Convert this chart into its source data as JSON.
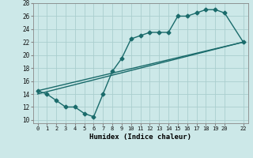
{
  "xlabel": "Humidex (Indice chaleur)",
  "bg_color": "#cce8e8",
  "grid_color": "#aacece",
  "line_color": "#1a6b6b",
  "xlim": [
    -0.5,
    22.5
  ],
  "ylim": [
    9.5,
    28
  ],
  "xticks": [
    0,
    1,
    2,
    3,
    4,
    5,
    6,
    7,
    8,
    9,
    10,
    11,
    12,
    13,
    14,
    15,
    16,
    17,
    18,
    19,
    20,
    22
  ],
  "yticks": [
    10,
    12,
    14,
    16,
    18,
    20,
    22,
    24,
    26,
    28
  ],
  "line1_x": [
    0,
    1,
    2,
    3,
    4,
    5,
    6,
    7,
    8,
    9,
    10,
    11,
    12,
    13,
    14,
    15,
    16,
    17,
    18,
    19,
    20,
    22
  ],
  "line1_y": [
    14.5,
    14,
    13,
    12,
    12,
    11,
    10.5,
    14,
    17.5,
    19.5,
    22.5,
    23,
    23.5,
    23.5,
    23.5,
    26,
    26,
    26.5,
    27,
    27,
    26.5,
    22
  ],
  "line2_x": [
    0,
    22
  ],
  "line2_y": [
    14,
    22
  ],
  "line3_x": [
    0,
    22
  ],
  "line3_y": [
    14.5,
    22
  ],
  "marker": "D",
  "markersize": 2.5,
  "linewidth": 1.0
}
